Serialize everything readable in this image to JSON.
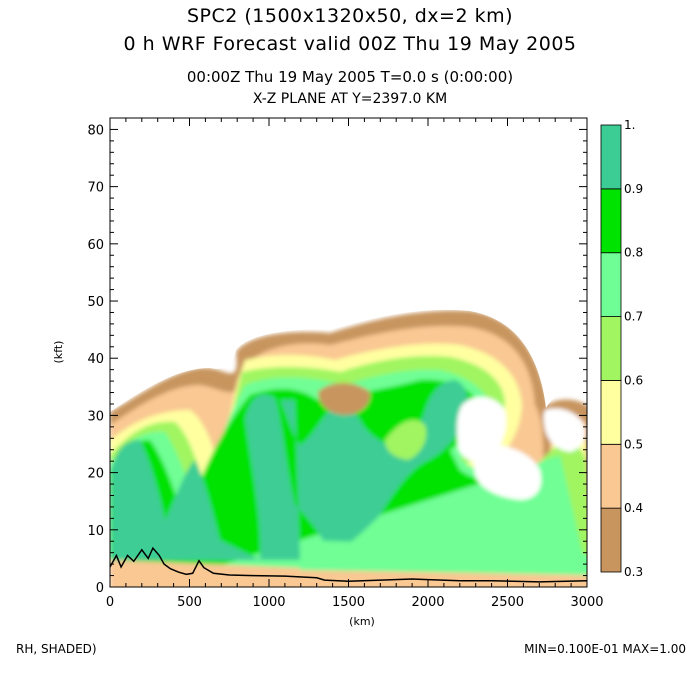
{
  "header": {
    "title1": "SPC2 (1500x1320x50, dx=2 km)",
    "title2": "0 h WRF Forecast valid 00Z Thu 19 May 2005",
    "subtitle1": "00:00Z Thu 19 May 2005      T=0.0 s (0:00:00)",
    "subtitle2": "X-Z PLANE AT Y=2397.0 KM"
  },
  "footer": {
    "left": "RH, SHADED)",
    "right": "MIN=0.100E-01 MAX=1.00"
  },
  "chart_data": {
    "type": "contour",
    "xlabel": "(km)",
    "ylabel": "(kft)",
    "xlim": [
      0,
      3000
    ],
    "ylim": [
      0,
      82
    ],
    "x_ticks": [
      0,
      500,
      1000,
      1500,
      2000,
      2500,
      3000
    ],
    "y_ticks": [
      0,
      10,
      20,
      30,
      40,
      50,
      60,
      70,
      80
    ],
    "field": "RH",
    "field_min": 0.01,
    "field_max": 1.0,
    "colorbar": {
      "levels": [
        "0.3",
        "0.4",
        "0.5",
        "0.6",
        "0.7",
        "0.8",
        "0.9",
        "1."
      ],
      "colors": [
        "#c8955f",
        "#f9c893",
        "#ffffa0",
        "#a0f560",
        "#6ffe95",
        "#00e200",
        "#3ccd95"
      ]
    },
    "terrain": [
      [
        0,
        3.5
      ],
      [
        40,
        5.5
      ],
      [
        70,
        3.5
      ],
      [
        110,
        5.5
      ],
      [
        150,
        4.5
      ],
      [
        200,
        6.5
      ],
      [
        240,
        5
      ],
      [
        270,
        6.8
      ],
      [
        310,
        5.5
      ],
      [
        340,
        4
      ],
      [
        380,
        3.2
      ],
      [
        430,
        2.6
      ],
      [
        480,
        2.2
      ],
      [
        520,
        2.4
      ],
      [
        560,
        4.6
      ],
      [
        590,
        3.4
      ],
      [
        650,
        2.4
      ],
      [
        750,
        2.1
      ],
      [
        900,
        2.0
      ],
      [
        1100,
        1.9
      ],
      [
        1300,
        1.6
      ],
      [
        1350,
        1.2
      ],
      [
        1500,
        1.0
      ],
      [
        1700,
        1.2
      ],
      [
        1900,
        1.4
      ],
      [
        2000,
        1.3
      ],
      [
        2200,
        1.1
      ],
      [
        2400,
        1.1
      ],
      [
        2700,
        0.9
      ],
      [
        3000,
        1.1
      ]
    ]
  }
}
